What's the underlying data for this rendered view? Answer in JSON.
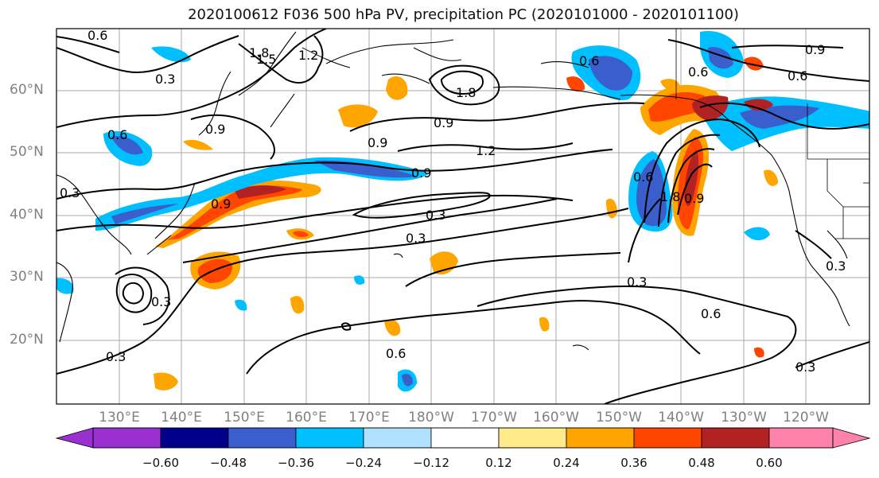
{
  "title": "2020100612 F036 500 hPa PV, precipitation PC (2020101000 - 2020101100)",
  "lat_labels": [
    "60°N",
    "50°N",
    "40°N",
    "30°N",
    "20°N"
  ],
  "lon_labels": [
    "130°E",
    "140°E",
    "150°E",
    "160°E",
    "170°E",
    "180°W",
    "170°W",
    "160°W",
    "150°W",
    "140°W",
    "130°W",
    "120°W"
  ],
  "colorbar": {
    "ticks": [
      "−0.60",
      "−0.48",
      "−0.36",
      "−0.24",
      "−0.12",
      "0.12",
      "0.24",
      "0.36",
      "0.48",
      "0.60"
    ],
    "colors": [
      "#9b30d0",
      "#00008b",
      "#3a5fcd",
      "#00bfff",
      "#b0e2ff",
      "#ffffff",
      "#ffeb8a",
      "#ffa500",
      "#ff4500",
      "#b22222",
      "#ff82ab"
    ]
  },
  "contour_labels": [
    "0.6",
    "1.8",
    "1.5",
    "1.2",
    "0.3",
    "1.8",
    "0.6",
    "0.9",
    "0.6",
    "0.9",
    "0.9",
    "0.9",
    "1.2",
    "0.9",
    "0.9",
    "0.3",
    "0.3",
    "0.3",
    "0.6",
    "0.6",
    "1.8",
    "0.6",
    "0.9",
    "0.3",
    "0.6",
    "0.3",
    "0.3",
    "0.6",
    "0.3",
    "0.3"
  ],
  "colors": {
    "land": "#000000",
    "grid": "#a8a8a8",
    "contour": "#000000",
    "axis_label": "#808080"
  }
}
